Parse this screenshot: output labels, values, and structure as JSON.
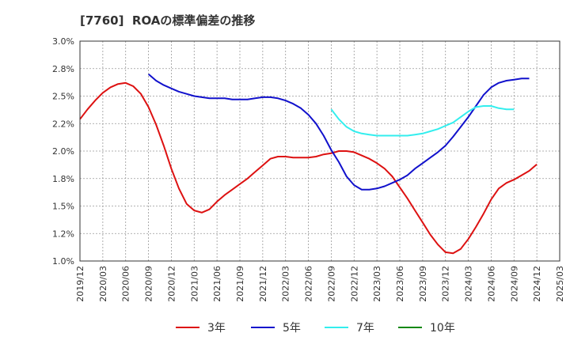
{
  "chart_data": {
    "type": "line",
    "title": "[7760]  ROAの標準偏差の推移",
    "ylim": [
      1.0,
      3.0
    ],
    "y_ticks": [
      "1.0%",
      "1.2%",
      "1.5%",
      "1.8%",
      "2.0%",
      "2.2%",
      "2.5%",
      "2.8%",
      "3.0%"
    ],
    "x_ticks": [
      "2019/12",
      "2020/03",
      "2020/06",
      "2020/09",
      "2020/12",
      "2021/03",
      "2021/06",
      "2021/09",
      "2021/12",
      "2022/03",
      "2022/06",
      "2022/09",
      "2022/12",
      "2023/03",
      "2023/06",
      "2023/09",
      "2023/12",
      "2024/03",
      "2024/06",
      "2024/09",
      "2024/12",
      "2025/03"
    ],
    "grid": true,
    "legend_position": "bottom",
    "series": [
      {
        "name": "3年",
        "color": "#dd1111",
        "start_month": 0,
        "values": [
          2.29,
          2.38,
          2.46,
          2.53,
          2.58,
          2.61,
          2.62,
          2.59,
          2.52,
          2.4,
          2.24,
          2.05,
          1.84,
          1.66,
          1.52,
          1.46,
          1.44,
          1.47,
          1.54,
          1.6,
          1.65,
          1.7,
          1.75,
          1.81,
          1.87,
          1.93,
          1.95,
          1.95,
          1.94,
          1.94,
          1.94,
          1.95,
          1.97,
          1.98,
          2.0,
          2.0,
          1.99,
          1.96,
          1.93,
          1.89,
          1.84,
          1.77,
          1.67,
          1.57,
          1.46,
          1.35,
          1.24,
          1.15,
          1.08,
          1.07,
          1.11,
          1.2,
          1.31,
          1.43,
          1.56,
          1.66,
          1.71,
          1.74,
          1.78,
          1.82,
          1.88
        ]
      },
      {
        "name": "5年",
        "color": "#1111cc",
        "start_month": 9,
        "values": [
          2.7,
          2.64,
          2.6,
          2.57,
          2.54,
          2.52,
          2.5,
          2.49,
          2.48,
          2.48,
          2.48,
          2.47,
          2.47,
          2.47,
          2.48,
          2.49,
          2.49,
          2.48,
          2.46,
          2.43,
          2.39,
          2.33,
          2.25,
          2.14,
          2.01,
          1.9,
          1.77,
          1.69,
          1.65,
          1.65,
          1.66,
          1.68,
          1.71,
          1.74,
          1.78,
          1.84,
          1.89,
          1.94,
          1.99,
          2.05,
          2.13,
          2.22,
          2.31,
          2.41,
          2.51,
          2.58,
          2.62,
          2.64,
          2.65,
          2.66,
          2.66
        ]
      },
      {
        "name": "7年",
        "color": "#33eeee",
        "start_month": 33,
        "values": [
          2.38,
          2.29,
          2.22,
          2.18,
          2.16,
          2.15,
          2.14,
          2.14,
          2.14,
          2.14,
          2.14,
          2.15,
          2.16,
          2.18,
          2.2,
          2.23,
          2.26,
          2.31,
          2.36,
          2.4,
          2.41,
          2.41,
          2.39,
          2.38,
          2.38
        ]
      },
      {
        "name": "10年",
        "color": "#118811",
        "start_month": 0,
        "values": []
      }
    ]
  }
}
